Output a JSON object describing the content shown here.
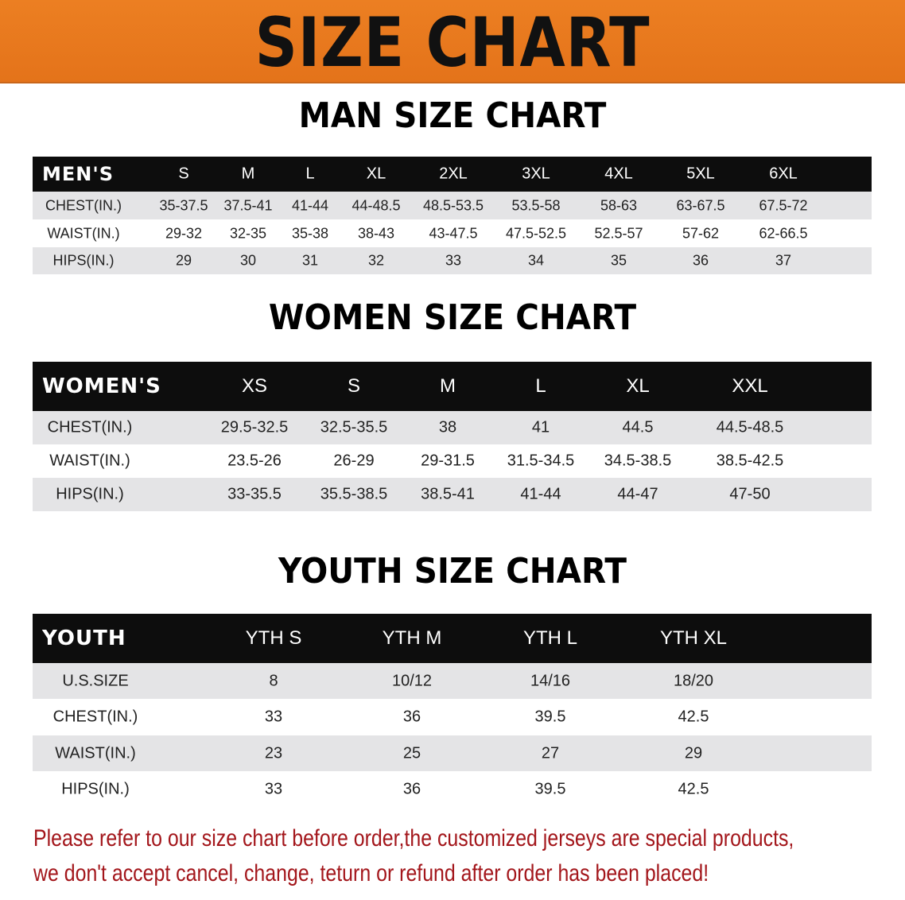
{
  "banner": {
    "title": "SIZE CHART",
    "color": "#e8781e"
  },
  "men": {
    "title": "MAN SIZE CHART",
    "header": [
      "MEN'S",
      "S",
      "M",
      "L",
      "XL",
      "2XL",
      "3XL",
      "4XL",
      "5XL",
      "6XL"
    ],
    "rows": [
      [
        "CHEST(IN.)",
        "35-37.5",
        "37.5-41",
        "41-44",
        "44-48.5",
        "48.5-53.5",
        "53.5-58",
        "58-63",
        "63-67.5",
        "67.5-72"
      ],
      [
        "WAIST(IN.)",
        "29-32",
        "32-35",
        "35-38",
        "38-43",
        "43-47.5",
        "47.5-52.5",
        "52.5-57",
        "57-62",
        "62-66.5"
      ],
      [
        "HIPS(IN.)",
        "29",
        "30",
        "31",
        "32",
        "33",
        "34",
        "35",
        "36",
        "37"
      ]
    ]
  },
  "women": {
    "title": "WOMEN SIZE CHART",
    "header": [
      "WOMEN'S",
      "XS",
      "S",
      "M",
      "L",
      "XL",
      "XXL"
    ],
    "rows": [
      [
        "CHEST(IN.)",
        "29.5-32.5",
        "32.5-35.5",
        "38",
        "41",
        "44.5",
        "44.5-48.5"
      ],
      [
        "WAIST(IN.)",
        "23.5-26",
        "26-29",
        "29-31.5",
        "31.5-34.5",
        "34.5-38.5",
        "38.5-42.5"
      ],
      [
        "HIPS(IN.)",
        "33-35.5",
        "35.5-38.5",
        "38.5-41",
        "41-44",
        "44-47",
        "47-50"
      ]
    ]
  },
  "youth": {
    "title": "YOUTH SIZE CHART",
    "header": [
      "YOUTH",
      "YTH S",
      "YTH M",
      "YTH L",
      "YTH XL"
    ],
    "rows": [
      [
        "U.S.SIZE",
        "8",
        "10/12",
        "14/16",
        "18/20"
      ],
      [
        "CHEST(IN.)",
        "33",
        "36",
        "39.5",
        "42.5"
      ],
      [
        "WAIST(IN.)",
        "23",
        "25",
        "27",
        "29"
      ],
      [
        "HIPS(IN.)",
        "33",
        "36",
        "39.5",
        "42.5"
      ]
    ]
  },
  "notice": {
    "line1": "Please refer to our size chart before order,the customized jerseys are special products,",
    "line2": "we don't accept cancel, change, teturn or refund after order has been placed!",
    "color": "#a3161b"
  }
}
